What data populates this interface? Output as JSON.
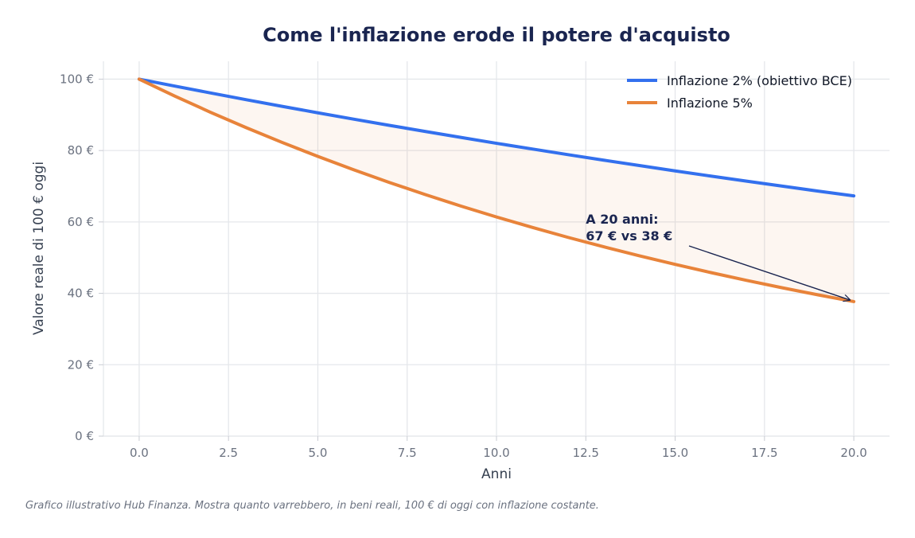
{
  "chart_data": {
    "type": "line",
    "title": "Come l'inflazione erode il potere d'acquisto",
    "xlabel": "Anni",
    "ylabel": "Valore reale di 100 € oggi",
    "xlim": [
      -1,
      21
    ],
    "ylim": [
      0,
      105
    ],
    "x_ticks": [
      0,
      2.5,
      5,
      7.5,
      10,
      12.5,
      15,
      17.5,
      20
    ],
    "x_tick_labels": [
      "0.0",
      "2.5",
      "5.0",
      "7.5",
      "10.0",
      "12.5",
      "15.0",
      "17.5",
      "20.0"
    ],
    "y_ticks": [
      0,
      20,
      40,
      60,
      80,
      100
    ],
    "y_tick_labels": [
      "0 €",
      "20 €",
      "40 €",
      "60 €",
      "80 €",
      "100 €"
    ],
    "grid": true,
    "legend_position": "top-right",
    "x": [
      0,
      1,
      2,
      3,
      4,
      5,
      6,
      7,
      8,
      9,
      10,
      11,
      12,
      13,
      14,
      15,
      16,
      17,
      18,
      19,
      20
    ],
    "series": [
      {
        "name": "Inflazione 2% (obiettivo BCE)",
        "color": "#3370ee",
        "values": [
          100,
          98.04,
          96.12,
          94.23,
          92.38,
          90.57,
          88.8,
          87.06,
          85.35,
          83.68,
          82.03,
          80.43,
          78.85,
          77.3,
          75.79,
          74.3,
          72.84,
          71.42,
          70.02,
          68.64,
          67.3
        ]
      },
      {
        "name": "Inflazione 5%",
        "color": "#e8833a",
        "values": [
          100,
          95.24,
          90.7,
          86.38,
          82.27,
          78.35,
          74.62,
          71.07,
          67.68,
          64.46,
          61.39,
          58.47,
          55.68,
          53.03,
          50.51,
          48.1,
          45.81,
          43.63,
          41.55,
          39.57,
          37.69
        ]
      }
    ],
    "fill_between": {
      "color": "#e8833a",
      "opacity": 0.07
    },
    "annotation": {
      "lines": [
        "A 20 anni:",
        "67 € vs 38 €"
      ],
      "text_at": [
        12.5,
        60
      ],
      "arrow_to": [
        20,
        37.69
      ],
      "color": "#1a2550"
    },
    "title_color": "#1a2550",
    "axis_text_color": "#6b7280",
    "grid_color": "#e5e7eb"
  },
  "footnote": "Grafico illustrativo Hub Finanza. Mostra quanto varrebbero, in beni reali, 100 € di oggi con inflazione costante."
}
